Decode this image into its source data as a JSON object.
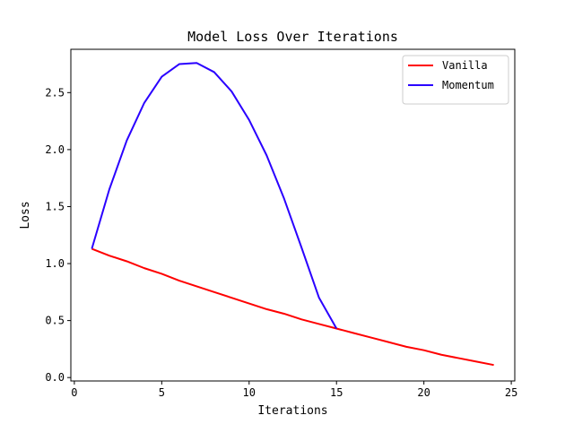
{
  "chart_data": {
    "type": "line",
    "title": "Model Loss Over Iterations",
    "xlabel": "Iterations",
    "ylabel": "Loss",
    "xlim": [
      -0.2,
      25.2
    ],
    "ylim": [
      -0.03,
      2.88
    ],
    "xticks": [
      0,
      5,
      10,
      15,
      20,
      25
    ],
    "xtick_labels": [
      "0",
      "5",
      "10",
      "15",
      "20",
      "25"
    ],
    "yticks": [
      0.0,
      0.5,
      1.0,
      1.5,
      2.0,
      2.5
    ],
    "ytick_labels": [
      "0.0",
      "0.5",
      "1.0",
      "1.5",
      "2.0",
      "2.5"
    ],
    "grid": false,
    "legend_position": "top-right",
    "series": [
      {
        "name": "Vanilla",
        "color": "#ff0000",
        "x": [
          1,
          2,
          3,
          4,
          5,
          6,
          7,
          8,
          9,
          10,
          11,
          12,
          13,
          14,
          15,
          16,
          17,
          18,
          19,
          20,
          21,
          22,
          23,
          24
        ],
        "y": [
          1.13,
          1.07,
          1.02,
          0.96,
          0.91,
          0.85,
          0.8,
          0.75,
          0.7,
          0.65,
          0.6,
          0.56,
          0.51,
          0.47,
          0.43,
          0.39,
          0.35,
          0.31,
          0.27,
          0.24,
          0.2,
          0.17,
          0.14,
          0.11
        ]
      },
      {
        "name": "Momentum",
        "color": "#2a00ff",
        "x": [
          1,
          2,
          3,
          4,
          5,
          6,
          7,
          8,
          9,
          10,
          11,
          12,
          13,
          14,
          15
        ],
        "y": [
          1.13,
          1.65,
          2.08,
          2.41,
          2.64,
          2.75,
          2.76,
          2.68,
          2.51,
          2.26,
          1.95,
          1.57,
          1.14,
          0.7,
          0.43
        ]
      }
    ]
  }
}
